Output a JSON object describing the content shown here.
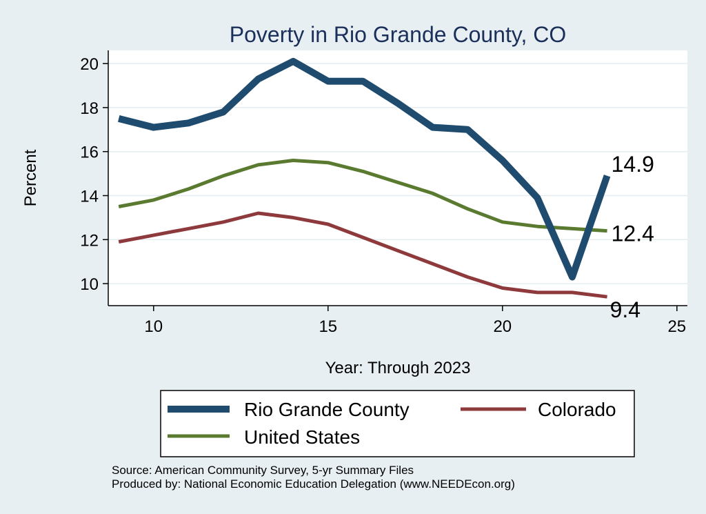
{
  "chart_data": {
    "type": "line",
    "title": "Poverty in Rio Grande County, CO",
    "xlabel": "Year: Through 2023",
    "ylabel": "Percent",
    "xlim": [
      8.7,
      25.3
    ],
    "ylim": [
      9.0,
      20.6
    ],
    "xticks": [
      10,
      15,
      20,
      25
    ],
    "yticks": [
      10,
      12,
      14,
      16,
      18,
      20
    ],
    "grid": true,
    "legend_position": "bottom",
    "x": [
      9,
      10,
      11,
      12,
      13,
      14,
      15,
      16,
      17,
      18,
      19,
      20,
      21,
      22,
      23
    ],
    "series": [
      {
        "name": "Rio Grande County",
        "color": "#1f4b6e",
        "width": 10,
        "values": [
          17.5,
          17.1,
          17.3,
          17.8,
          19.3,
          20.1,
          19.2,
          19.2,
          18.2,
          17.1,
          17.0,
          15.6,
          13.9,
          10.3,
          14.9
        ],
        "end_label": "14.9"
      },
      {
        "name": "Colorado",
        "color": "#8e3a3c",
        "width": 5,
        "values": [
          11.9,
          12.2,
          12.5,
          12.8,
          13.2,
          13.0,
          12.7,
          12.1,
          11.5,
          10.9,
          10.3,
          9.8,
          9.6,
          9.6,
          9.4
        ],
        "end_label": "9.4"
      },
      {
        "name": "United States",
        "color": "#5a7a30",
        "width": 5,
        "values": [
          13.5,
          13.8,
          14.3,
          14.9,
          15.4,
          15.6,
          15.5,
          15.1,
          14.6,
          14.1,
          13.4,
          12.8,
          12.6,
          12.5,
          12.4
        ],
        "end_label": "12.4"
      }
    ]
  },
  "footer": {
    "source": "Source: American Community Survey, 5-yr Summary Files",
    "produced_by": "Produced by: National Economic Education Delegation (www.NEEDEcon.org)"
  }
}
